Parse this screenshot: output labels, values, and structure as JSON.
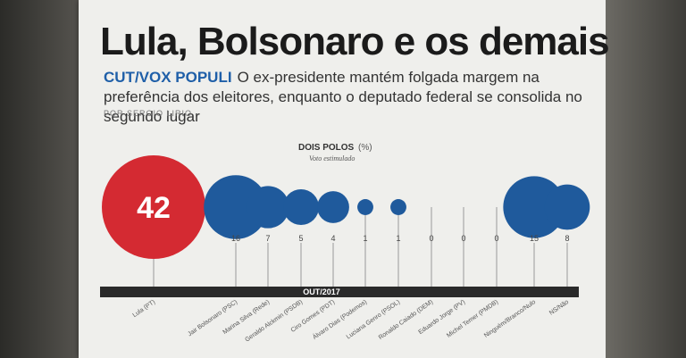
{
  "header": {
    "title": "Lula, Bolsonaro e os demais",
    "kicker": "CUT/VOX POPULI",
    "lead": "O ex-presidente mantém folgada margem na preferência dos eleitores, enquanto o deputado federal se consolida no segundo lugar",
    "byline": "POR SERGIO LIRIO"
  },
  "chart_data": {
    "type": "scatter",
    "title": "DOIS POLOS",
    "unit": "(%)",
    "subtitle": "Voto estimulado",
    "period": "OUT/2017",
    "categories": [
      "Lula (PT)",
      "Jair Bolsonaro (PSC)",
      "Marina Silva (Rede)",
      "Geraldo Alckmin (PSDB)",
      "Ciro Gomes (PDT)",
      "Álvaro Dias (Podemos)",
      "Luciana Genro (PSOL)",
      "Ronaldo Caiado (DEM)",
      "Eduardo Jorge (PV)",
      "Michel Temer (PMDB)",
      "Ninguém/Branco/Nulo",
      "NS/Não"
    ],
    "values": [
      42,
      16,
      7,
      5,
      4,
      1,
      1,
      0,
      0,
      0,
      15,
      8
    ],
    "colors": [
      "red",
      "blue",
      "blue",
      "blue",
      "blue",
      "blue",
      "blue",
      "blue",
      "blue",
      "blue",
      "blue",
      "blue"
    ]
  },
  "colors": {
    "red": "#d42a32",
    "blue": "#1f5a9c",
    "bar": "#2a2a2a",
    "stem": "#9a9a9a",
    "kicker": "#1f5fa8"
  }
}
